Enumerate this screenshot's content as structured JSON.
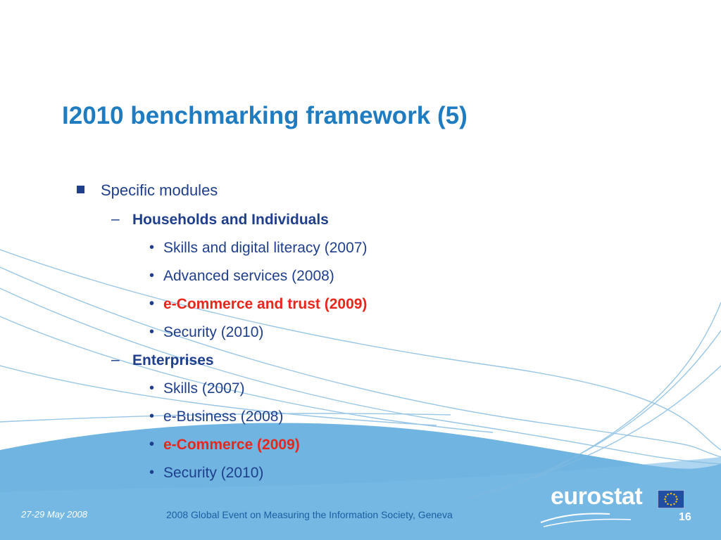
{
  "slide": {
    "title": "I2010 benchmarking framework (5)",
    "level1": "Specific modules",
    "sections": [
      {
        "heading": "Households and Individuals",
        "items": [
          {
            "text": "Skills and digital literacy (2007)",
            "highlight": false
          },
          {
            "text": "Advanced services (2008)",
            "highlight": false
          },
          {
            "text": "e-Commerce and trust (2009)",
            "highlight": true
          },
          {
            "text": "Security (2010)",
            "highlight": false
          }
        ]
      },
      {
        "heading": "Enterprises",
        "items": [
          {
            "text": "Skills (2007)",
            "highlight": false
          },
          {
            "text": "e-Business (2008)",
            "highlight": false
          },
          {
            "text": "e-Commerce (2009)",
            "highlight": true
          },
          {
            "text": "Security (2010)",
            "highlight": false
          }
        ]
      }
    ]
  },
  "footer": {
    "date": "27-29 May 2008",
    "event": "2008 Global Event on Measuring the Information Society, Geneva",
    "page_number": "16",
    "logo_text": "eurostat"
  },
  "colors": {
    "title": "#1f7cc0",
    "body": "#1f3f8c",
    "highlight": "#e8261c",
    "footer_band": "#6fb3e0"
  }
}
